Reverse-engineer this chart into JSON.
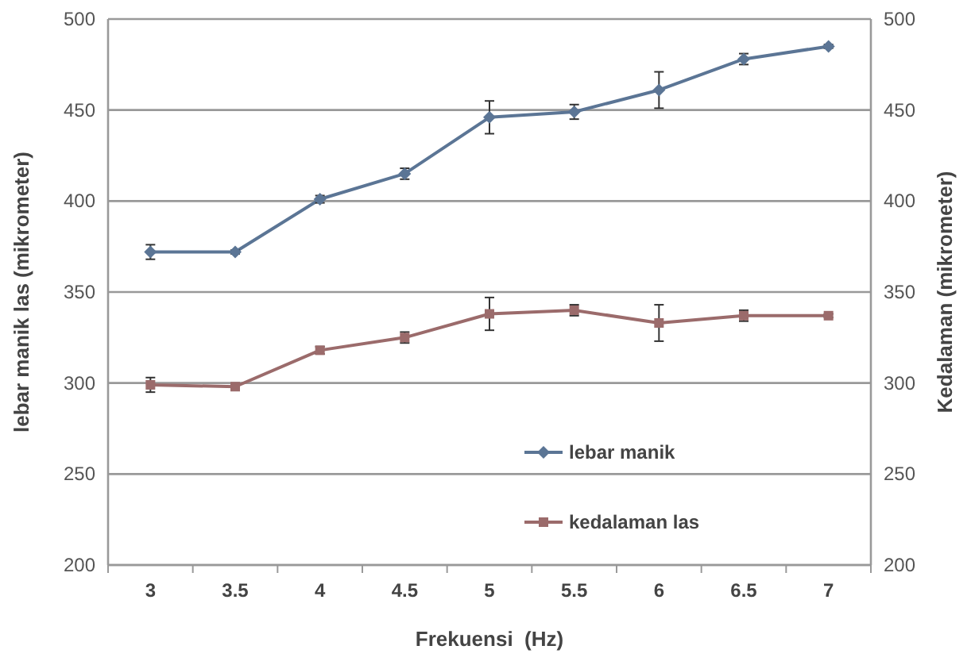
{
  "chart_data": {
    "type": "line",
    "xlabel": "Frekuensi  (Hz)",
    "ylabel": "lebar manik las (mikrometer)",
    "y2label": "Kedalaman (mikrometer)",
    "categories": [
      "3",
      "3.5",
      "4",
      "4.5",
      "5",
      "5.5",
      "6",
      "6.5",
      "7"
    ],
    "series": [
      {
        "name": "lebar manik",
        "color": "#5b7595",
        "marker": "diamond",
        "values": [
          372,
          372,
          401,
          415,
          446,
          449,
          461,
          478,
          485
        ],
        "errors": [
          4,
          1,
          2,
          3,
          9,
          4,
          10,
          3,
          1
        ]
      },
      {
        "name": "kedalaman las",
        "color": "#9b6b6b",
        "marker": "square",
        "values": [
          299,
          298,
          318,
          325,
          338,
          340,
          333,
          337,
          337
        ],
        "errors": [
          4,
          1,
          2,
          3,
          9,
          3,
          10,
          3,
          1
        ]
      }
    ],
    "ylim": [
      200,
      500
    ],
    "yticks": [
      200,
      250,
      300,
      350,
      400,
      450,
      500
    ],
    "y2lim": [
      200,
      500
    ],
    "y2ticks": [
      200,
      250,
      300,
      350,
      400,
      450,
      500
    ],
    "grid": "y",
    "legend": "bottom"
  }
}
